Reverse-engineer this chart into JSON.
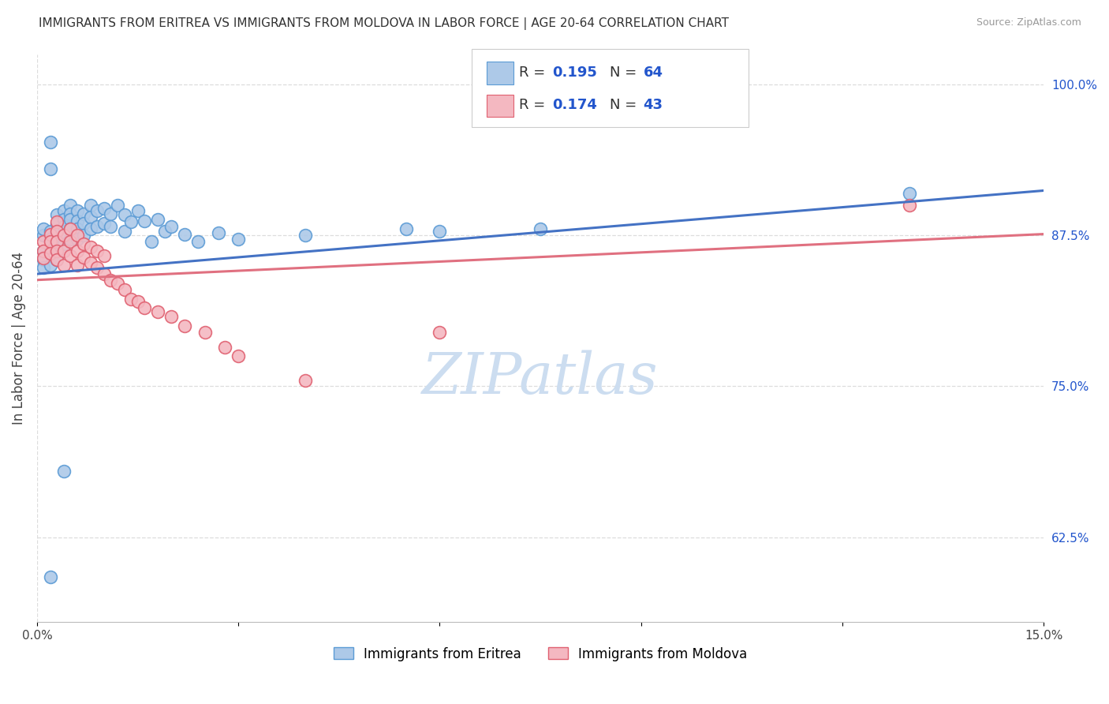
{
  "title": "IMMIGRANTS FROM ERITREA VS IMMIGRANTS FROM MOLDOVA IN LABOR FORCE | AGE 20-64 CORRELATION CHART",
  "source": "Source: ZipAtlas.com",
  "ylabel": "In Labor Force | Age 20-64",
  "xlim": [
    0.0,
    0.15
  ],
  "ylim": [
    0.555,
    1.025
  ],
  "x_ticks": [
    0.0,
    0.03,
    0.06,
    0.09,
    0.12,
    0.15
  ],
  "x_tick_labels": [
    "0.0%",
    "",
    "",
    "",
    "",
    "15.0%"
  ],
  "y_tick_labels_right": [
    "62.5%",
    "75.0%",
    "87.5%",
    "100.0%"
  ],
  "y_ticks_right": [
    0.625,
    0.75,
    0.875,
    1.0
  ],
  "color_eritrea_fill": "#adc9e8",
  "color_eritrea_edge": "#5b9bd5",
  "color_moldova_fill": "#f4b8c1",
  "color_moldova_edge": "#e06070",
  "color_line_eritrea": "#4472c4",
  "color_line_moldova": "#e07080",
  "color_text_blue": "#2255cc",
  "color_grid": "#dddddd",
  "background_color": "#ffffff",
  "watermark_text": "ZIPatlas",
  "watermark_color": "#ccddf0",
  "eritrea_x": [
    0.001,
    0.001,
    0.001,
    0.001,
    0.001,
    0.002,
    0.002,
    0.002,
    0.002,
    0.003,
    0.003,
    0.003,
    0.003,
    0.003,
    0.003,
    0.004,
    0.004,
    0.004,
    0.004,
    0.004,
    0.005,
    0.005,
    0.005,
    0.005,
    0.005,
    0.006,
    0.006,
    0.006,
    0.006,
    0.007,
    0.007,
    0.007,
    0.008,
    0.008,
    0.008,
    0.009,
    0.009,
    0.01,
    0.01,
    0.011,
    0.011,
    0.012,
    0.013,
    0.013,
    0.014,
    0.015,
    0.016,
    0.017,
    0.018,
    0.019,
    0.02,
    0.022,
    0.024,
    0.027,
    0.03,
    0.04,
    0.055,
    0.06,
    0.075,
    0.002,
    0.002,
    0.13,
    0.002,
    0.004
  ],
  "eritrea_y": [
    0.862,
    0.875,
    0.88,
    0.855,
    0.848,
    0.878,
    0.872,
    0.865,
    0.85,
    0.892,
    0.885,
    0.878,
    0.87,
    0.862,
    0.855,
    0.895,
    0.888,
    0.882,
    0.875,
    0.868,
    0.9,
    0.893,
    0.888,
    0.88,
    0.872,
    0.895,
    0.887,
    0.88,
    0.872,
    0.893,
    0.885,
    0.875,
    0.9,
    0.89,
    0.88,
    0.895,
    0.882,
    0.897,
    0.885,
    0.893,
    0.882,
    0.9,
    0.892,
    0.878,
    0.886,
    0.895,
    0.887,
    0.87,
    0.888,
    0.878,
    0.882,
    0.876,
    0.87,
    0.877,
    0.872,
    0.875,
    0.88,
    0.878,
    0.88,
    0.93,
    0.952,
    0.91,
    0.592,
    0.68
  ],
  "moldova_x": [
    0.001,
    0.001,
    0.001,
    0.002,
    0.002,
    0.002,
    0.003,
    0.003,
    0.003,
    0.003,
    0.003,
    0.004,
    0.004,
    0.004,
    0.005,
    0.005,
    0.005,
    0.006,
    0.006,
    0.006,
    0.007,
    0.007,
    0.008,
    0.008,
    0.009,
    0.009,
    0.01,
    0.01,
    0.011,
    0.012,
    0.013,
    0.014,
    0.015,
    0.016,
    0.018,
    0.02,
    0.022,
    0.025,
    0.028,
    0.03,
    0.04,
    0.06,
    0.13
  ],
  "moldova_y": [
    0.87,
    0.862,
    0.856,
    0.876,
    0.87,
    0.86,
    0.886,
    0.878,
    0.87,
    0.862,
    0.855,
    0.875,
    0.862,
    0.85,
    0.88,
    0.87,
    0.858,
    0.875,
    0.862,
    0.85,
    0.868,
    0.857,
    0.865,
    0.852,
    0.862,
    0.848,
    0.858,
    0.843,
    0.838,
    0.835,
    0.83,
    0.822,
    0.82,
    0.815,
    0.812,
    0.808,
    0.8,
    0.795,
    0.782,
    0.775,
    0.755,
    0.795,
    0.9
  ],
  "trend_eritrea_x0": 0.0,
  "trend_eritrea_x1": 0.15,
  "trend_moldova_x0": 0.0,
  "trend_moldova_x1": 0.15
}
